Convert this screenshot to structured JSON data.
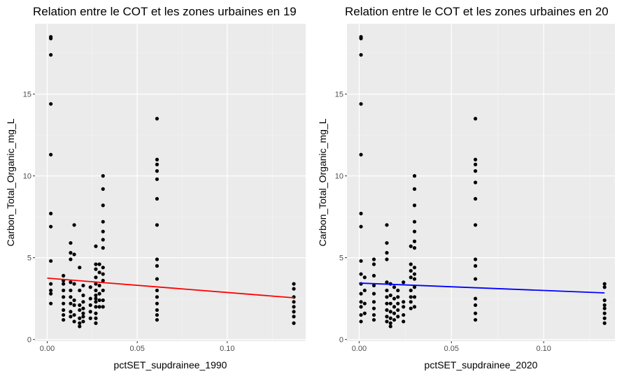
{
  "chart_data": [
    {
      "type": "scatter",
      "title": "Relation entre le COT et les zones urbaines en 19",
      "xlabel": "pctSET_supdrainee_1990",
      "ylabel": "Carbon_Total_Organic_mg_L",
      "xlim": [
        -0.0068,
        0.1436
      ],
      "ylim": [
        -0.1,
        19.3
      ],
      "x_ticks": [
        0.0,
        0.05,
        0.1
      ],
      "x_tick_labels": [
        "0.00",
        "0.05",
        "0.10"
      ],
      "y_ticks": [
        0,
        5,
        10,
        15
      ],
      "y_tick_labels": [
        "0",
        "5",
        "10",
        "15"
      ],
      "grid": true,
      "legend": "none",
      "point_color": "#000000",
      "fit_color": "#ff0000",
      "fit_line": {
        "x": [
          0.0,
          0.137
        ],
        "y": [
          3.75,
          2.55
        ]
      },
      "points": [
        [
          0.002,
          18.5
        ],
        [
          0.002,
          18.4
        ],
        [
          0.002,
          17.4
        ],
        [
          0.002,
          14.4
        ],
        [
          0.002,
          11.3
        ],
        [
          0.002,
          7.7
        ],
        [
          0.002,
          6.9
        ],
        [
          0.002,
          4.8
        ],
        [
          0.002,
          3.4
        ],
        [
          0.002,
          3.0
        ],
        [
          0.002,
          2.8
        ],
        [
          0.002,
          2.2
        ],
        [
          0.009,
          3.9
        ],
        [
          0.009,
          3.6
        ],
        [
          0.009,
          3.4
        ],
        [
          0.009,
          3.0
        ],
        [
          0.009,
          2.6
        ],
        [
          0.009,
          2.2
        ],
        [
          0.009,
          1.8
        ],
        [
          0.009,
          1.5
        ],
        [
          0.009,
          1.2
        ],
        [
          0.013,
          5.9
        ],
        [
          0.013,
          5.3
        ],
        [
          0.013,
          4.9
        ],
        [
          0.013,
          3.5
        ],
        [
          0.013,
          3.0
        ],
        [
          0.013,
          2.6
        ],
        [
          0.013,
          2.2
        ],
        [
          0.013,
          1.7
        ],
        [
          0.013,
          1.4
        ],
        [
          0.015,
          7.0
        ],
        [
          0.015,
          5.2
        ],
        [
          0.015,
          3.4
        ],
        [
          0.015,
          2.4
        ],
        [
          0.015,
          2.1
        ],
        [
          0.015,
          1.5
        ],
        [
          0.015,
          1.1
        ],
        [
          0.018,
          4.4
        ],
        [
          0.018,
          3.0
        ],
        [
          0.018,
          2.1
        ],
        [
          0.018,
          1.8
        ],
        [
          0.018,
          1.3
        ],
        [
          0.018,
          1.0
        ],
        [
          0.018,
          0.8
        ],
        [
          0.02,
          3.3
        ],
        [
          0.02,
          2.7
        ],
        [
          0.02,
          2.3
        ],
        [
          0.02,
          1.9
        ],
        [
          0.02,
          1.6
        ],
        [
          0.02,
          1.4
        ],
        [
          0.02,
          1.1
        ],
        [
          0.024,
          3.2
        ],
        [
          0.024,
          2.5
        ],
        [
          0.024,
          2.1
        ],
        [
          0.024,
          1.7
        ],
        [
          0.024,
          1.3
        ],
        [
          0.027,
          5.7
        ],
        [
          0.027,
          4.6
        ],
        [
          0.027,
          4.3
        ],
        [
          0.027,
          3.8
        ],
        [
          0.027,
          3.4
        ],
        [
          0.027,
          3.0
        ],
        [
          0.027,
          2.7
        ],
        [
          0.027,
          2.5
        ],
        [
          0.027,
          2.3
        ],
        [
          0.027,
          2.0
        ],
        [
          0.027,
          1.6
        ],
        [
          0.027,
          1.3
        ],
        [
          0.027,
          1.0
        ],
        [
          0.029,
          4.6
        ],
        [
          0.029,
          4.1
        ],
        [
          0.029,
          3.3
        ],
        [
          0.029,
          2.8
        ],
        [
          0.029,
          2.4
        ],
        [
          0.029,
          2.0
        ],
        [
          0.031,
          10.0
        ],
        [
          0.031,
          9.2
        ],
        [
          0.031,
          8.2
        ],
        [
          0.031,
          7.2
        ],
        [
          0.031,
          6.6
        ],
        [
          0.031,
          6.1
        ],
        [
          0.031,
          5.6
        ],
        [
          0.031,
          4.4
        ],
        [
          0.031,
          4.0
        ],
        [
          0.031,
          3.6
        ],
        [
          0.031,
          3.0
        ],
        [
          0.031,
          2.4
        ],
        [
          0.031,
          2.0
        ],
        [
          0.061,
          13.5
        ],
        [
          0.061,
          11.0
        ],
        [
          0.061,
          10.7
        ],
        [
          0.061,
          10.3
        ],
        [
          0.061,
          9.8
        ],
        [
          0.061,
          8.6
        ],
        [
          0.061,
          7.0
        ],
        [
          0.061,
          4.9
        ],
        [
          0.061,
          4.5
        ],
        [
          0.061,
          3.7
        ],
        [
          0.061,
          3.0
        ],
        [
          0.061,
          2.6
        ],
        [
          0.061,
          2.2
        ],
        [
          0.061,
          1.8
        ],
        [
          0.061,
          1.5
        ],
        [
          0.061,
          1.2
        ],
        [
          0.137,
          3.4
        ],
        [
          0.137,
          3.1
        ],
        [
          0.137,
          2.6
        ],
        [
          0.137,
          2.3
        ],
        [
          0.137,
          2.0
        ],
        [
          0.137,
          1.7
        ],
        [
          0.137,
          1.4
        ],
        [
          0.137,
          1.0
        ]
      ]
    },
    {
      "type": "scatter",
      "title": "Relation entre le COT et les zones urbaines en 20",
      "xlabel": "pctSET_supdrainee_2020",
      "ylabel": "Carbon_Total_Organic_mg_L",
      "xlim": [
        -0.0066,
        0.1386
      ],
      "ylim": [
        -0.1,
        19.3
      ],
      "x_ticks": [
        0.0,
        0.05,
        0.1
      ],
      "x_tick_labels": [
        "0.00",
        "0.05",
        "0.10"
      ],
      "y_ticks": [
        0,
        5,
        10,
        15
      ],
      "y_tick_labels": [
        "0",
        "5",
        "10",
        "15"
      ],
      "grid": true,
      "legend": "none",
      "point_color": "#000000",
      "fit_color": "#0000ff",
      "fit_line": {
        "x": [
          0.0,
          0.133
        ],
        "y": [
          3.45,
          2.85
        ]
      },
      "points": [
        [
          0.001,
          18.5
        ],
        [
          0.001,
          18.4
        ],
        [
          0.001,
          17.4
        ],
        [
          0.001,
          14.4
        ],
        [
          0.001,
          11.3
        ],
        [
          0.001,
          7.7
        ],
        [
          0.001,
          6.9
        ],
        [
          0.001,
          4.8
        ],
        [
          0.001,
          4.0
        ],
        [
          0.001,
          3.4
        ],
        [
          0.001,
          2.8
        ],
        [
          0.001,
          2.3
        ],
        [
          0.001,
          2.0
        ],
        [
          0.001,
          1.5
        ],
        [
          0.001,
          1.1
        ],
        [
          0.003,
          3.8
        ],
        [
          0.003,
          3.0
        ],
        [
          0.003,
          2.2
        ],
        [
          0.003,
          1.6
        ],
        [
          0.008,
          4.9
        ],
        [
          0.008,
          4.6
        ],
        [
          0.008,
          3.9
        ],
        [
          0.008,
          3.3
        ],
        [
          0.008,
          2.8
        ],
        [
          0.008,
          2.3
        ],
        [
          0.008,
          1.9
        ],
        [
          0.008,
          1.5
        ],
        [
          0.008,
          1.2
        ],
        [
          0.015,
          7.0
        ],
        [
          0.015,
          5.9
        ],
        [
          0.015,
          5.3
        ],
        [
          0.015,
          4.9
        ],
        [
          0.015,
          3.5
        ],
        [
          0.015,
          3.0
        ],
        [
          0.015,
          2.6
        ],
        [
          0.015,
          2.2
        ],
        [
          0.015,
          1.8
        ],
        [
          0.015,
          1.4
        ],
        [
          0.015,
          1.1
        ],
        [
          0.017,
          3.4
        ],
        [
          0.017,
          2.7
        ],
        [
          0.017,
          2.2
        ],
        [
          0.017,
          1.7
        ],
        [
          0.017,
          1.3
        ],
        [
          0.017,
          1.0
        ],
        [
          0.017,
          0.8
        ],
        [
          0.019,
          3.2
        ],
        [
          0.019,
          2.5
        ],
        [
          0.019,
          2.0
        ],
        [
          0.019,
          1.6
        ],
        [
          0.019,
          1.2
        ],
        [
          0.021,
          3.0
        ],
        [
          0.021,
          2.6
        ],
        [
          0.021,
          2.2
        ],
        [
          0.021,
          1.8
        ],
        [
          0.021,
          1.4
        ],
        [
          0.024,
          3.5
        ],
        [
          0.024,
          2.3
        ],
        [
          0.024,
          2.0
        ],
        [
          0.024,
          1.5
        ],
        [
          0.024,
          1.1
        ],
        [
          0.028,
          5.7
        ],
        [
          0.028,
          4.6
        ],
        [
          0.028,
          4.2
        ],
        [
          0.028,
          3.8
        ],
        [
          0.028,
          3.0
        ],
        [
          0.028,
          2.6
        ],
        [
          0.028,
          2.3
        ],
        [
          0.028,
          1.9
        ],
        [
          0.03,
          10.0
        ],
        [
          0.03,
          9.2
        ],
        [
          0.03,
          8.2
        ],
        [
          0.03,
          7.2
        ],
        [
          0.03,
          6.6
        ],
        [
          0.03,
          6.0
        ],
        [
          0.03,
          5.6
        ],
        [
          0.03,
          4.4
        ],
        [
          0.03,
          4.0
        ],
        [
          0.03,
          3.7
        ],
        [
          0.03,
          3.2
        ],
        [
          0.03,
          2.6
        ],
        [
          0.03,
          2.0
        ],
        [
          0.063,
          13.5
        ],
        [
          0.063,
          11.0
        ],
        [
          0.063,
          10.7
        ],
        [
          0.063,
          10.3
        ],
        [
          0.063,
          9.6
        ],
        [
          0.063,
          8.6
        ],
        [
          0.063,
          7.0
        ],
        [
          0.063,
          4.9
        ],
        [
          0.063,
          4.5
        ],
        [
          0.063,
          3.7
        ],
        [
          0.063,
          2.5
        ],
        [
          0.063,
          2.1
        ],
        [
          0.063,
          1.6
        ],
        [
          0.063,
          1.2
        ],
        [
          0.133,
          3.4
        ],
        [
          0.133,
          3.2
        ],
        [
          0.133,
          2.4
        ],
        [
          0.133,
          2.1
        ],
        [
          0.133,
          1.9
        ],
        [
          0.133,
          1.6
        ],
        [
          0.133,
          1.3
        ],
        [
          0.133,
          1.0
        ]
      ]
    }
  ]
}
